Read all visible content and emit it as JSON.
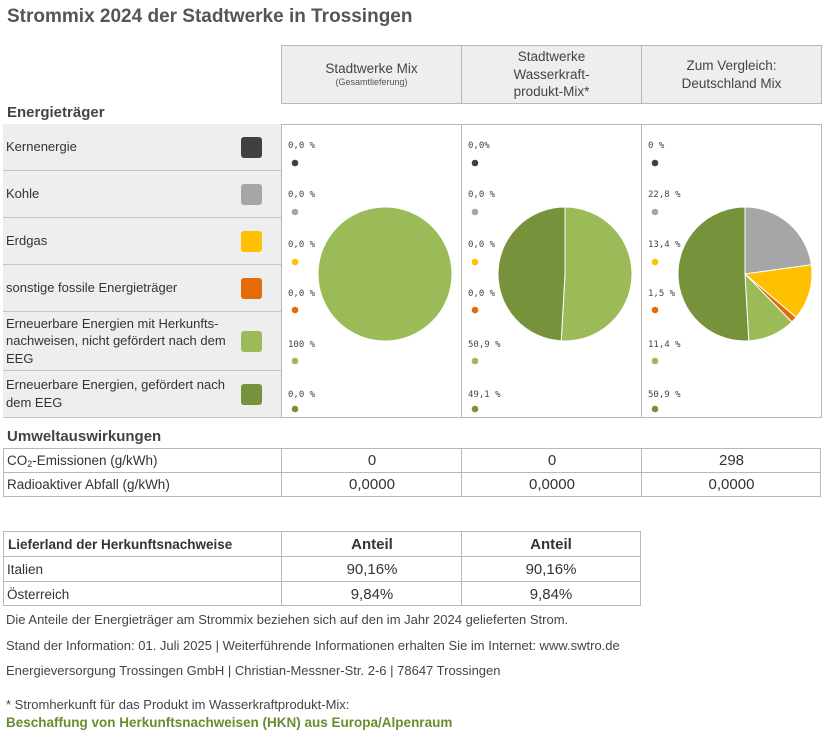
{
  "title": "Strommix 2024 der Stadtwerke in Trossingen",
  "columns": [
    {
      "label": "Stadtwerke Mix",
      "sub": "(Gesamtlieferung)"
    },
    {
      "label": "Stadtwerke Wasserkraft-produkt-Mix*",
      "sub": ""
    },
    {
      "label": "Zum Vergleich: Deutschland Mix",
      "sub": ""
    }
  ],
  "energy_heading": "Energieträger",
  "colors": {
    "kernenergie": "#404040",
    "kohle": "#a6a6a6",
    "erdgas": "#ffc000",
    "sonstige": "#e36c09",
    "ee_nicht_gefoerdert": "#9bbb59",
    "ee_gefoerdert": "#76933c",
    "accent_green": "#6a8c2f"
  },
  "carriers": [
    {
      "label": "Kernenergie",
      "color": "#404040"
    },
    {
      "label": "Kohle",
      "color": "#a6a6a6"
    },
    {
      "label": "Erdgas",
      "color": "#ffc000"
    },
    {
      "label": "sonstige fossile Energieträger",
      "color": "#e36c09"
    },
    {
      "label": "Erneuerbare Energien mit Herkunfts-nachweisen, nicht gefördert nach dem EEG",
      "color": "#9bbb59"
    },
    {
      "label": "Erneuerbare Energien, gefördert nach dem EEG",
      "color": "#76933c"
    }
  ],
  "chart_data": [
    {
      "type": "pie",
      "title": "Stadtwerke Mix",
      "categories": [
        "Kernenergie",
        "Kohle",
        "Erdgas",
        "sonstige fossile Energieträger",
        "Erneuerbare Energien mit Herkunftsnachweisen, nicht gefördert nach dem EEG",
        "Erneuerbare Energien, gefördert nach dem EEG"
      ],
      "values": [
        0,
        0,
        0,
        0,
        100,
        0
      ],
      "labels": [
        "0,0 %",
        "0,0 %",
        "0,0 %",
        "0,0 %",
        "100 %",
        "0,0 %"
      ],
      "unit": "%"
    },
    {
      "type": "pie",
      "title": "Stadtwerke Wasserkraftprodukt-Mix*",
      "categories": [
        "Kernenergie",
        "Kohle",
        "Erdgas",
        "sonstige fossile Energieträger",
        "Erneuerbare Energien mit Herkunftsnachweisen, nicht gefördert nach dem EEG",
        "Erneuerbare Energien, gefördert nach dem EEG"
      ],
      "values": [
        0,
        0,
        0,
        0,
        50.9,
        49.1
      ],
      "labels": [
        "0,0%",
        "0,0 %",
        "0,0 %",
        "0,0 %",
        "50,9 %",
        "49,1 %"
      ],
      "unit": "%"
    },
    {
      "type": "pie",
      "title": "Zum Vergleich: Deutschland Mix",
      "categories": [
        "Kernenergie",
        "Kohle",
        "Erdgas",
        "sonstige fossile Energieträger",
        "Erneuerbare Energien mit Herkunftsnachweisen, nicht gefördert nach dem EEG",
        "Erneuerbare Energien, gefördert nach dem EEG"
      ],
      "values": [
        0,
        22.8,
        13.4,
        1.5,
        11.4,
        50.9
      ],
      "labels": [
        "0 %",
        "22,8 %",
        "13,4 %",
        "1,5 %",
        "11,4 %",
        "50,9 %"
      ],
      "unit": "%"
    }
  ],
  "env_heading": "Umweltauswirkungen",
  "env_rows": [
    {
      "label_pre": "CO",
      "label_sub": "2",
      "label_post": "-Emissionen (g/kWh)",
      "values": [
        "0",
        "0",
        "298"
      ]
    },
    {
      "label_pre": "Radioaktiver Abfall (g/kWh)",
      "label_sub": "",
      "label_post": "",
      "values": [
        "0,0000",
        "0,0000",
        "0,0000"
      ]
    }
  ],
  "origin_table": {
    "header": "Lieferland der Herkunftsnachweise",
    "col_headers": [
      "Anteil",
      "Anteil"
    ],
    "rows": [
      {
        "country": "Italien",
        "values": [
          "90,16%",
          "90,16%"
        ]
      },
      {
        "country": "Österreich",
        "values": [
          "9,84%",
          "9,84%"
        ]
      }
    ]
  },
  "footer": {
    "line1": "Die Anteile der Energieträger am Strommix beziehen sich auf den im Jahr 2024 gelieferten Strom.",
    "line2": "Stand der Information: 01. Juli 2025 | Weiterführende Informationen erhalten Sie im Internet: www.swtro.de",
    "line3": "Energieversorgung Trossingen GmbH | Christian-Messner-Str. 2-6 | 78647 Trossingen",
    "note": "* Stromherkunft für das Produkt im Wasserkraftprodukt-Mix:",
    "note_highlight": "Beschaffung von Herkunftsnachweisen (HKN) aus Europa/Alpenraum"
  }
}
